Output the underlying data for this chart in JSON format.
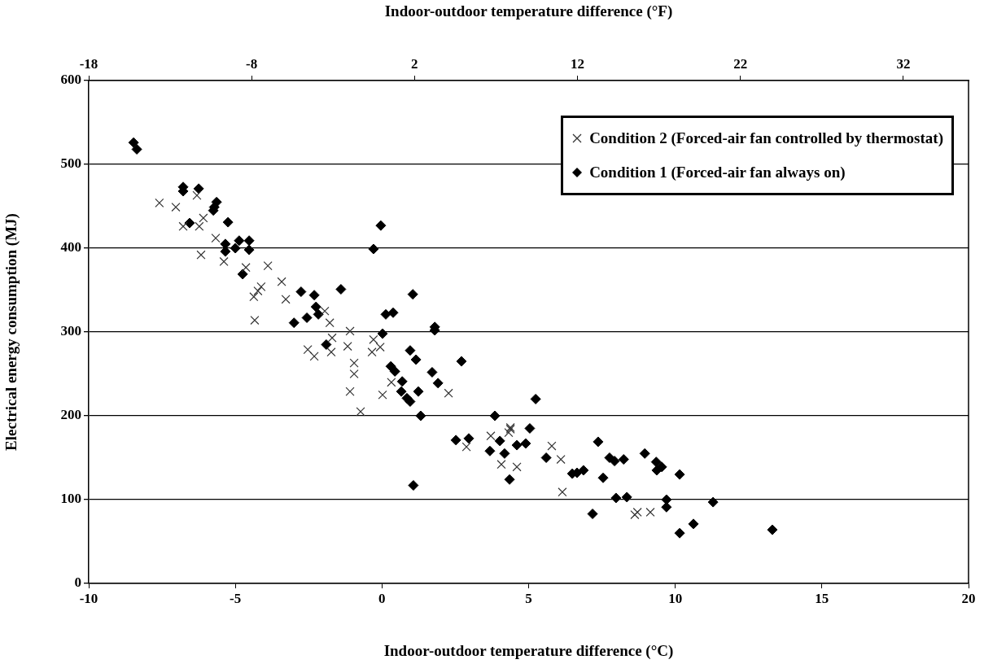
{
  "chart_data": {
    "type": "scatter",
    "xlabel": "Indoor-outdoor temperature difference (°C)",
    "ylabel": "Electrical energy consumption (MJ)",
    "x2label": "Indoor-outdoor temperature difference (°F)",
    "xlim": [
      -10,
      20
    ],
    "xticks": [
      -10,
      -5,
      0,
      5,
      10,
      15,
      20
    ],
    "x2lim": [
      -18,
      36
    ],
    "x2ticks": [
      -18,
      -8,
      2,
      12,
      22,
      32
    ],
    "ylim": [
      0,
      600
    ],
    "yticks": [
      0,
      100,
      200,
      300,
      400,
      500,
      600
    ],
    "grid": "y",
    "legend": "top right",
    "series": [
      {
        "name": "Condition 2 (Forced-air fan controlled by thermostat)",
        "color": "#333333",
        "marker": "cross",
        "x": [
          -7.59,
          -7.03,
          -6.31,
          -6.78,
          -6.23,
          -6.09,
          -5.67,
          -6.17,
          -5.39,
          -4.64,
          -3.89,
          -4.12,
          -4.23,
          -4.37,
          -3.42,
          -3.28,
          -4.34,
          -2.53,
          -2.31,
          -1.95,
          -1.78,
          -1.09,
          -1.7,
          -1.17,
          -1.73,
          -0.95,
          -0.95,
          -1.09,
          -0.73,
          -0.29,
          -0.34,
          -0.06,
          0.02,
          0.32,
          2.27,
          4.38,
          2.88,
          3.71,
          4.38,
          4.32,
          4.07,
          4.6,
          5.79,
          6.1,
          6.15,
          8.62,
          8.71,
          9.15
        ],
        "values": [
          454,
          449,
          463,
          426,
          426,
          436,
          412,
          392,
          384,
          377,
          379,
          354,
          349,
          342,
          360,
          339,
          314,
          279,
          271,
          325,
          311,
          301,
          293,
          283,
          276,
          263,
          250,
          229,
          205,
          291,
          276,
          282,
          225,
          240,
          227,
          186,
          163,
          176,
          184,
          180,
          142,
          139,
          164,
          148,
          109,
          82,
          85,
          85
        ]
      },
      {
        "name": "Condition 1 (Forced-air fan always on)",
        "color": "#000000",
        "marker": "diamond",
        "x": [
          -8.47,
          -8.36,
          -6.78,
          -6.78,
          -6.25,
          -5.64,
          -5.72,
          -5.75,
          -6.56,
          -5.25,
          -5.34,
          -5.34,
          -5.0,
          -4.87,
          -4.53,
          -4.53,
          -4.75,
          -2.76,
          -2.31,
          -2.25,
          -2.17,
          -3.0,
          -2.56,
          -1.9,
          -0.04,
          -0.29,
          -1.4,
          1.05,
          0.13,
          0.38,
          0.02,
          1.8,
          1.8,
          0.96,
          1.16,
          0.3,
          0.44,
          2.71,
          1.71,
          0.69,
          1.91,
          0.66,
          1.24,
          0.85,
          0.96,
          5.24,
          1.32,
          3.85,
          5.04,
          2.96,
          2.52,
          4.02,
          3.68,
          4.18,
          4.6,
          4.9,
          4.35,
          5.6,
          6.49,
          6.65,
          6.87,
          7.37,
          7.54,
          7.76,
          7.93,
          8.24,
          7.18,
          7.98,
          8.35,
          8.96,
          9.35,
          9.37,
          9.54,
          10.15,
          9.7,
          9.7,
          10.15,
          10.62,
          11.29,
          13.31,
          1.07
        ],
        "values": [
          526,
          518,
          473,
          468,
          471,
          455,
          449,
          445,
          430,
          431,
          405,
          396,
          400,
          409,
          409,
          398,
          369,
          348,
          344,
          330,
          321,
          311,
          317,
          285,
          427,
          399,
          351,
          345,
          321,
          323,
          298,
          306,
          302,
          278,
          267,
          259,
          253,
          265,
          252,
          241,
          239,
          229,
          229,
          221,
          217,
          220,
          200,
          200,
          185,
          173,
          171,
          170,
          158,
          155,
          165,
          167,
          124,
          150,
          131,
          132,
          135,
          169,
          126,
          150,
          146,
          148,
          83,
          102,
          103,
          155,
          145,
          135,
          139,
          130,
          100,
          91,
          60,
          71,
          97,
          64,
          117
        ]
      }
    ]
  }
}
